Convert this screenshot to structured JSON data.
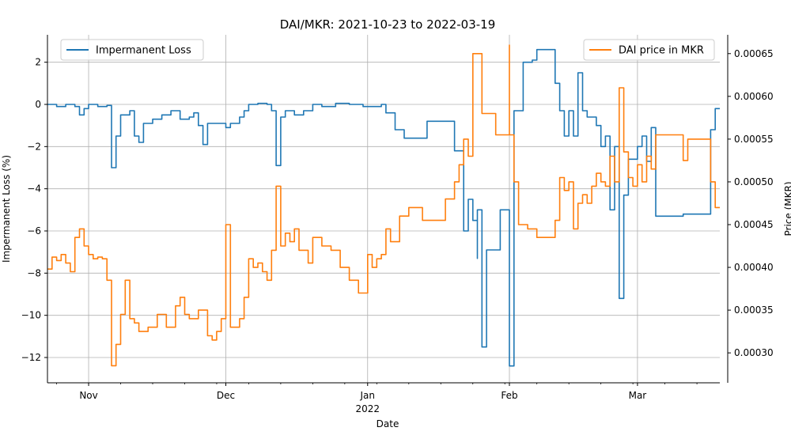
{
  "chart_data": {
    "type": "line",
    "title": "DAI/MKR: 2021-10-23 to 2022-03-19",
    "xlabel": "Date",
    "x_ticks": [
      {
        "date": "2021-11-01",
        "label": "Nov",
        "sublabel": ""
      },
      {
        "date": "2021-12-01",
        "label": "Dec",
        "sublabel": ""
      },
      {
        "date": "2022-01-01",
        "label": "Jan",
        "sublabel": "2022"
      },
      {
        "date": "2022-02-01",
        "label": "Feb",
        "sublabel": ""
      },
      {
        "date": "2022-03-01",
        "label": "Mar",
        "sublabel": ""
      }
    ],
    "xlim": [
      "2021-10-23",
      "2022-03-19"
    ],
    "grid": true,
    "left_axis": {
      "label": "Impermanent Loss (%)",
      "ylim": [
        -13.2,
        3.3
      ],
      "ticks": [
        2,
        0,
        -2,
        -4,
        -6,
        -8,
        -10,
        -12
      ],
      "tick_labels": [
        "2",
        "0",
        "−2",
        "−4",
        "−6",
        "−8",
        "−10",
        "−12"
      ]
    },
    "right_axis": {
      "label": "Price (MKR)",
      "ylim": [
        0.000265,
        0.000672
      ],
      "ticks": [
        0.0003,
        0.00035,
        0.0004,
        0.00045,
        0.0005,
        0.00055,
        0.0006,
        0.00065
      ],
      "tick_labels": [
        "0.00030",
        "0.00035",
        "0.00040",
        "0.00045",
        "0.00050",
        "0.00055",
        "0.00060",
        "0.00065"
      ]
    },
    "series": [
      {
        "name": "Impermanent Loss",
        "axis": "left",
        "color": "#1f77b4",
        "legend_position": "top-left",
        "points": [
          [
            "2021-10-23",
            0
          ],
          [
            "2021-10-25",
            -0.1
          ],
          [
            "2021-10-27",
            0
          ],
          [
            "2021-10-29",
            -0.1
          ],
          [
            "2021-10-30",
            -0.5
          ],
          [
            "2021-10-31",
            -0.2
          ],
          [
            "2021-11-01",
            0
          ],
          [
            "2021-11-03",
            -0.1
          ],
          [
            "2021-11-05",
            -0.05
          ],
          [
            "2021-11-06",
            -1.0
          ],
          [
            "2021-11-06",
            -3.0
          ],
          [
            "2021-11-07",
            -1.5
          ],
          [
            "2021-11-08",
            -0.5
          ],
          [
            "2021-11-10",
            -0.3
          ],
          [
            "2021-11-11",
            -1.5
          ],
          [
            "2021-11-12",
            -1.8
          ],
          [
            "2021-11-13",
            -0.9
          ],
          [
            "2021-11-15",
            -0.7
          ],
          [
            "2021-11-17",
            -0.5
          ],
          [
            "2021-11-19",
            -0.3
          ],
          [
            "2021-11-21",
            -0.7
          ],
          [
            "2021-11-23",
            -0.6
          ],
          [
            "2021-11-24",
            -0.4
          ],
          [
            "2021-11-25",
            -1.0
          ],
          [
            "2021-11-26",
            -1.9
          ],
          [
            "2021-11-27",
            -0.9
          ],
          [
            "2021-11-29",
            -0.9
          ],
          [
            "2021-12-01",
            -1.1
          ],
          [
            "2021-12-02",
            -0.9
          ],
          [
            "2021-12-04",
            -0.6
          ],
          [
            "2021-12-05",
            -0.3
          ],
          [
            "2021-12-06",
            0
          ],
          [
            "2021-12-08",
            0.05
          ],
          [
            "2021-12-10",
            0
          ],
          [
            "2021-12-11",
            -0.3
          ],
          [
            "2021-12-12",
            -2.9
          ],
          [
            "2021-12-13",
            -0.6
          ],
          [
            "2021-12-14",
            -0.3
          ],
          [
            "2021-12-16",
            -0.5
          ],
          [
            "2021-12-18",
            -0.3
          ],
          [
            "2021-12-20",
            0
          ],
          [
            "2021-12-22",
            -0.1
          ],
          [
            "2021-12-25",
            0.05
          ],
          [
            "2021-12-28",
            0
          ],
          [
            "2021-12-31",
            -0.1
          ],
          [
            "2022-01-02",
            -0.1
          ],
          [
            "2022-01-04",
            0
          ],
          [
            "2022-01-05",
            -0.4
          ],
          [
            "2022-01-07",
            -1.2
          ],
          [
            "2022-01-09",
            -1.6
          ],
          [
            "2022-01-13",
            -1.6
          ],
          [
            "2022-01-14",
            -0.8
          ],
          [
            "2022-01-19",
            -0.8
          ],
          [
            "2022-01-20",
            -2.2
          ],
          [
            "2022-01-22",
            -3.5
          ],
          [
            "2022-01-22",
            -6.0
          ],
          [
            "2022-01-23",
            -4.5
          ],
          [
            "2022-01-24",
            -5.5
          ],
          [
            "2022-01-25",
            -7.3
          ],
          [
            "2022-01-25",
            -5.0
          ],
          [
            "2022-01-26",
            -11.5
          ],
          [
            "2022-01-27",
            -6.9
          ],
          [
            "2022-01-30",
            -5.0
          ],
          [
            "2022-02-01",
            -12.4
          ],
          [
            "2022-02-02",
            -0.3
          ],
          [
            "2022-02-03",
            -0.3
          ],
          [
            "2022-02-04",
            2.0
          ],
          [
            "2022-02-06",
            2.1
          ],
          [
            "2022-02-07",
            2.6
          ],
          [
            "2022-02-10",
            2.6
          ],
          [
            "2022-02-11",
            1.0
          ],
          [
            "2022-02-12",
            -0.3
          ],
          [
            "2022-02-13",
            -1.5
          ],
          [
            "2022-02-14",
            -0.3
          ],
          [
            "2022-02-15",
            -1.5
          ],
          [
            "2022-02-16",
            1.5
          ],
          [
            "2022-02-17",
            -0.3
          ],
          [
            "2022-02-18",
            -0.6
          ],
          [
            "2022-02-20",
            -1.0
          ],
          [
            "2022-02-21",
            -2.0
          ],
          [
            "2022-02-22",
            -1.5
          ],
          [
            "2022-02-23",
            -5.0
          ],
          [
            "2022-02-24",
            -2.0
          ],
          [
            "2022-02-25",
            -9.2
          ],
          [
            "2022-02-26",
            -4.3
          ],
          [
            "2022-02-27",
            -2.6
          ],
          [
            "2022-02-28",
            -2.6
          ],
          [
            "2022-03-01",
            -2.0
          ],
          [
            "2022-03-02",
            -1.5
          ],
          [
            "2022-03-03",
            -2.7
          ],
          [
            "2022-03-04",
            -1.1
          ],
          [
            "2022-03-05",
            -5.3
          ],
          [
            "2022-03-10",
            -5.3
          ],
          [
            "2022-03-11",
            -5.2
          ],
          [
            "2022-03-16",
            -5.2
          ],
          [
            "2022-03-17",
            -1.2
          ],
          [
            "2022-03-18",
            -0.2
          ],
          [
            "2022-03-19",
            -0.2
          ]
        ]
      },
      {
        "name": "DAI price in MKR",
        "axis": "right",
        "color": "#ff7f0e",
        "legend_position": "top-right",
        "points": [
          [
            "2021-10-23",
            0.000398
          ],
          [
            "2021-10-24",
            0.000412
          ],
          [
            "2021-10-25",
            0.000408
          ],
          [
            "2021-10-26",
            0.000415
          ],
          [
            "2021-10-27",
            0.000405
          ],
          [
            "2021-10-28",
            0.000395
          ],
          [
            "2021-10-29",
            0.000435
          ],
          [
            "2021-10-30",
            0.000445
          ],
          [
            "2021-10-31",
            0.000425
          ],
          [
            "2021-11-01",
            0.000415
          ],
          [
            "2021-11-02",
            0.00041
          ],
          [
            "2021-11-03",
            0.000412
          ],
          [
            "2021-11-04",
            0.00041
          ],
          [
            "2021-11-05",
            0.000385
          ],
          [
            "2021-11-06",
            0.00033
          ],
          [
            "2021-11-06",
            0.000285
          ],
          [
            "2021-11-07",
            0.00031
          ],
          [
            "2021-11-08",
            0.000345
          ],
          [
            "2021-11-09",
            0.000385
          ],
          [
            "2021-11-10",
            0.00034
          ],
          [
            "2021-11-11",
            0.000335
          ],
          [
            "2021-11-12",
            0.000325
          ],
          [
            "2021-11-14",
            0.00033
          ],
          [
            "2021-11-16",
            0.000345
          ],
          [
            "2021-11-18",
            0.00033
          ],
          [
            "2021-11-20",
            0.000355
          ],
          [
            "2021-11-21",
            0.000365
          ],
          [
            "2021-11-22",
            0.000345
          ],
          [
            "2021-11-23",
            0.00034
          ],
          [
            "2021-11-25",
            0.00035
          ],
          [
            "2021-11-27",
            0.00032
          ],
          [
            "2021-11-28",
            0.000315
          ],
          [
            "2021-11-29",
            0.000325
          ],
          [
            "2021-11-30",
            0.00034
          ],
          [
            "2021-12-01",
            0.00045
          ],
          [
            "2021-12-02",
            0.00033
          ],
          [
            "2021-12-04",
            0.00034
          ],
          [
            "2021-12-05",
            0.000365
          ],
          [
            "2021-12-06",
            0.00041
          ],
          [
            "2021-12-07",
            0.0004
          ],
          [
            "2021-12-08",
            0.000405
          ],
          [
            "2021-12-09",
            0.000395
          ],
          [
            "2021-12-10",
            0.000385
          ],
          [
            "2021-12-11",
            0.00042
          ],
          [
            "2021-12-12",
            0.000495
          ],
          [
            "2021-12-13",
            0.000425
          ],
          [
            "2021-12-14",
            0.00044
          ],
          [
            "2021-12-15",
            0.00043
          ],
          [
            "2021-12-16",
            0.000445
          ],
          [
            "2021-12-17",
            0.00042
          ],
          [
            "2021-12-19",
            0.000405
          ],
          [
            "2021-12-20",
            0.000435
          ],
          [
            "2021-12-22",
            0.000425
          ],
          [
            "2021-12-24",
            0.00042
          ],
          [
            "2021-12-26",
            0.0004
          ],
          [
            "2021-12-28",
            0.000385
          ],
          [
            "2021-12-30",
            0.00037
          ],
          [
            "2022-01-01",
            0.000415
          ],
          [
            "2022-01-02",
            0.0004
          ],
          [
            "2022-01-03",
            0.00041
          ],
          [
            "2022-01-04",
            0.000415
          ],
          [
            "2022-01-05",
            0.000445
          ],
          [
            "2022-01-06",
            0.00043
          ],
          [
            "2022-01-08",
            0.00046
          ],
          [
            "2022-01-10",
            0.00047
          ],
          [
            "2022-01-13",
            0.000455
          ],
          [
            "2022-01-15",
            0.000455
          ],
          [
            "2022-01-18",
            0.00048
          ],
          [
            "2022-01-20",
            0.0005
          ],
          [
            "2022-01-21",
            0.00052
          ],
          [
            "2022-01-22",
            0.00055
          ],
          [
            "2022-01-23",
            0.00053
          ],
          [
            "2022-01-24",
            0.00058
          ],
          [
            "2022-01-24",
            0.00065
          ],
          [
            "2022-01-26",
            0.00058
          ],
          [
            "2022-01-28",
            0.00058
          ],
          [
            "2022-01-29",
            0.000555
          ],
          [
            "2022-01-31",
            0.000555
          ],
          [
            "2022-02-01",
            0.00066
          ],
          [
            "2022-02-01",
            0.000555
          ],
          [
            "2022-02-02",
            0.0005
          ],
          [
            "2022-02-03",
            0.00045
          ],
          [
            "2022-02-05",
            0.000445
          ],
          [
            "2022-02-07",
            0.000435
          ],
          [
            "2022-02-10",
            0.000435
          ],
          [
            "2022-02-11",
            0.000455
          ],
          [
            "2022-02-12",
            0.000505
          ],
          [
            "2022-02-13",
            0.00049
          ],
          [
            "2022-02-14",
            0.0005
          ],
          [
            "2022-02-15",
            0.000445
          ],
          [
            "2022-02-16",
            0.000475
          ],
          [
            "2022-02-17",
            0.000485
          ],
          [
            "2022-02-18",
            0.000475
          ],
          [
            "2022-02-19",
            0.000495
          ],
          [
            "2022-02-20",
            0.00051
          ],
          [
            "2022-02-21",
            0.0005
          ],
          [
            "2022-02-22",
            0.000495
          ],
          [
            "2022-02-23",
            0.00053
          ],
          [
            "2022-02-24",
            0.0005
          ],
          [
            "2022-02-25",
            0.00061
          ],
          [
            "2022-02-26",
            0.000535
          ],
          [
            "2022-02-27",
            0.000505
          ],
          [
            "2022-02-28",
            0.000495
          ],
          [
            "2022-03-01",
            0.00052
          ],
          [
            "2022-03-02",
            0.0005
          ],
          [
            "2022-03-03",
            0.00053
          ],
          [
            "2022-03-04",
            0.000515
          ],
          [
            "2022-03-05",
            0.000555
          ],
          [
            "2022-03-10",
            0.000555
          ],
          [
            "2022-03-11",
            0.000525
          ],
          [
            "2022-03-12",
            0.00055
          ],
          [
            "2022-03-16",
            0.00055
          ],
          [
            "2022-03-17",
            0.0005
          ],
          [
            "2022-03-18",
            0.00047
          ],
          [
            "2022-03-19",
            0.00047
          ]
        ]
      }
    ]
  }
}
